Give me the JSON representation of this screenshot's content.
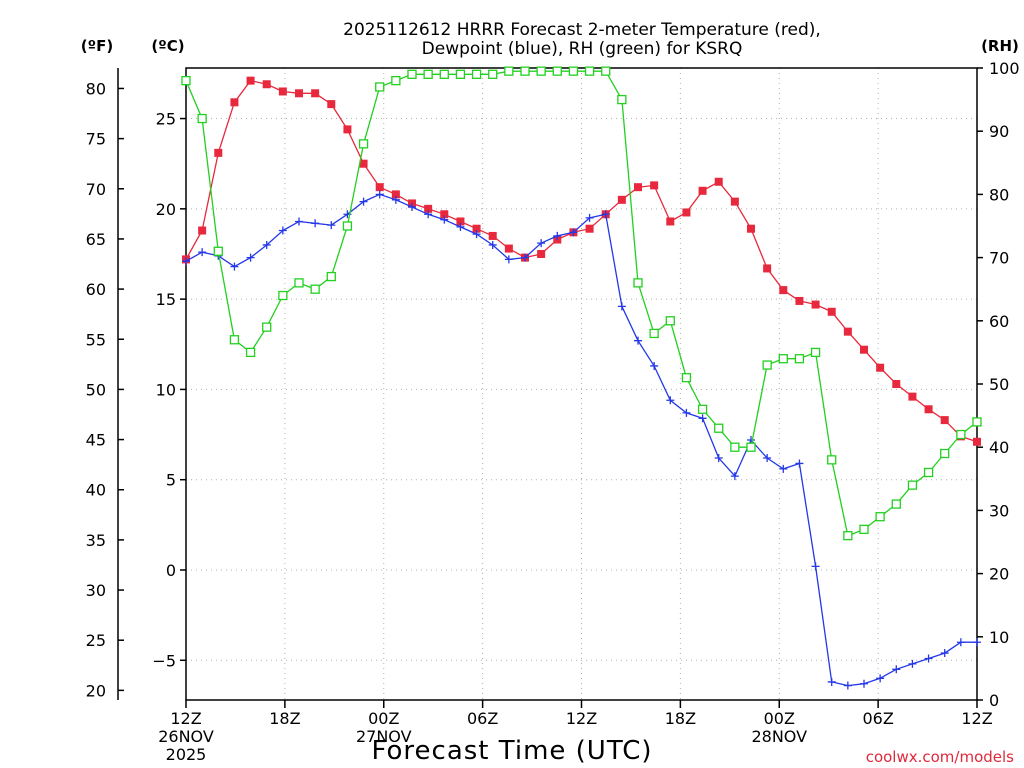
{
  "chart_data": {
    "type": "line",
    "title_line1": "2025112612 HRRR Forecast 2-meter Temperature (red),",
    "title_line2": "Dewpoint (blue), RH (green) for KSRQ",
    "xlabel": "Forecast Time (UTC)",
    "credit": "coolwx.com/models",
    "unit_f": "(ºF)",
    "unit_c": "(ºC)",
    "unit_rh": "(RH)",
    "xlim": [
      0,
      48
    ],
    "c_lim": [
      -7.2,
      27.8
    ],
    "rh_lim": [
      0,
      100
    ],
    "x_ticks": [
      {
        "x": 0,
        "label": "12Z",
        "sub1": "26NOV",
        "sub2": "2025"
      },
      {
        "x": 6,
        "label": "18Z",
        "sub1": "",
        "sub2": ""
      },
      {
        "x": 12,
        "label": "00Z",
        "sub1": "27NOV",
        "sub2": ""
      },
      {
        "x": 18,
        "label": "06Z",
        "sub1": "",
        "sub2": ""
      },
      {
        "x": 24,
        "label": "12Z",
        "sub1": "",
        "sub2": ""
      },
      {
        "x": 30,
        "label": "18Z",
        "sub1": "",
        "sub2": ""
      },
      {
        "x": 36,
        "label": "00Z",
        "sub1": "28NOV",
        "sub2": ""
      },
      {
        "x": 42,
        "label": "06Z",
        "sub1": "",
        "sub2": ""
      },
      {
        "x": 48,
        "label": "12Z",
        "sub1": "",
        "sub2": ""
      }
    ],
    "c_ticks": [
      {
        "v": 25,
        "label": "25"
      },
      {
        "v": 20,
        "label": "20"
      },
      {
        "v": 15,
        "label": "15"
      },
      {
        "v": 10,
        "label": "10"
      },
      {
        "v": 5,
        "label": "5"
      },
      {
        "v": 0,
        "label": "0"
      },
      {
        "v": -5,
        "label": "−5"
      }
    ],
    "f_ticks": [
      {
        "v": 80,
        "label": "80"
      },
      {
        "v": 75,
        "label": "75"
      },
      {
        "v": 70,
        "label": "70"
      },
      {
        "v": 65,
        "label": "65"
      },
      {
        "v": 60,
        "label": "60"
      },
      {
        "v": 55,
        "label": "55"
      },
      {
        "v": 50,
        "label": "50"
      },
      {
        "v": 45,
        "label": "45"
      },
      {
        "v": 40,
        "label": "40"
      },
      {
        "v": 35,
        "label": "35"
      },
      {
        "v": 30,
        "label": "30"
      },
      {
        "v": 25,
        "label": "25"
      },
      {
        "v": 20,
        "label": "20"
      }
    ],
    "rh_ticks": [
      {
        "v": 100,
        "label": "100"
      },
      {
        "v": 90,
        "label": "90"
      },
      {
        "v": 80,
        "label": "80"
      },
      {
        "v": 70,
        "label": "70"
      },
      {
        "v": 60,
        "label": "60"
      },
      {
        "v": 50,
        "label": "50"
      },
      {
        "v": 40,
        "label": "40"
      },
      {
        "v": 30,
        "label": "30"
      },
      {
        "v": 20,
        "label": "20"
      },
      {
        "v": 10,
        "label": "10"
      },
      {
        "v": 0,
        "label": "0"
      }
    ],
    "series": [
      {
        "name": "Temperature",
        "axis": "c",
        "color": "#e8283c",
        "marker": "filled-square",
        "values": [
          17.2,
          18.8,
          23.1,
          25.9,
          27.1,
          26.9,
          26.5,
          26.4,
          26.4,
          25.8,
          24.4,
          22.5,
          21.2,
          20.8,
          20.3,
          20.0,
          19.7,
          19.3,
          18.9,
          18.5,
          17.8,
          17.3,
          17.5,
          18.3,
          18.7,
          18.9,
          19.7,
          20.5,
          21.2,
          21.3,
          19.3,
          19.8,
          21.0,
          21.5,
          20.4,
          18.9,
          16.7,
          15.5,
          14.9,
          14.7,
          14.3,
          13.2,
          12.2,
          11.2,
          10.3,
          9.6,
          8.9,
          8.3,
          7.4,
          7.1
        ]
      },
      {
        "name": "Dewpoint",
        "axis": "c",
        "color": "#2438e8",
        "marker": "plus",
        "values": [
          17.1,
          17.6,
          17.4,
          16.8,
          17.3,
          18.0,
          18.8,
          19.3,
          19.2,
          19.1,
          19.7,
          20.4,
          20.8,
          20.5,
          20.1,
          19.7,
          19.4,
          19.0,
          18.6,
          18.0,
          17.2,
          17.3,
          18.1,
          18.5,
          18.7,
          19.5,
          19.7,
          14.6,
          12.7,
          11.3,
          9.4,
          8.7,
          8.4,
          6.2,
          5.2,
          7.2,
          6.2,
          5.6,
          5.9,
          0.2,
          -6.2,
          -6.4,
          -6.3,
          -6.0,
          -5.5,
          -5.2,
          -4.9,
          -4.6,
          -4.0,
          -4.0
        ]
      },
      {
        "name": "RH",
        "axis": "rh",
        "color": "#22d020",
        "marker": "open-square",
        "values": [
          98,
          92,
          71,
          57,
          55,
          59,
          64,
          66,
          65,
          67,
          75,
          88,
          97,
          98,
          99,
          99,
          99,
          99,
          99,
          99,
          99.5,
          99.5,
          99.5,
          99.5,
          99.5,
          99.5,
          99.5,
          95,
          66,
          58,
          60,
          51,
          46,
          43,
          40,
          40,
          53,
          54,
          54,
          55,
          38,
          26,
          27,
          29,
          31,
          34,
          36,
          39,
          42,
          44
        ]
      }
    ]
  }
}
